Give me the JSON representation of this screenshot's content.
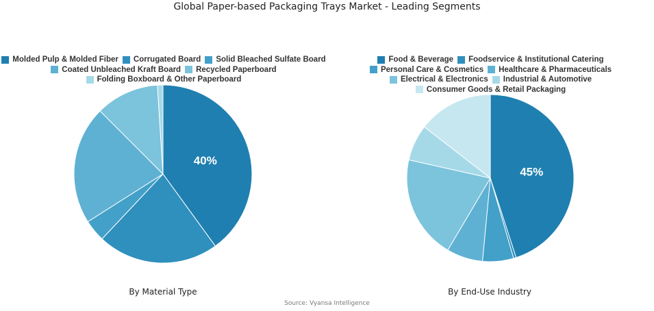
{
  "title": "Global Paper-based Packaging Trays Market - Leading Segments",
  "source": "Source: Vyansa Intelligence",
  "chart_data": [
    {
      "type": "pie",
      "subtitle": "By Material Type",
      "labels": [
        "Molded Pulp & Molded Fiber",
        "Corrugated Board",
        "Solid Bleached Sulfate Board",
        "Coated Unbleached Kraft Board",
        "Recycled Paperboard",
        "Folding Boxboard & Other Paperboard"
      ],
      "values": [
        40,
        22,
        4,
        21.5,
        11.5,
        1
      ],
      "colors": [
        "#1f7fb0",
        "#2f8fbd",
        "#43a0c8",
        "#5fb1d3",
        "#7cc3dc",
        "#a6d9e8"
      ],
      "data_labels": [
        "40%",
        "",
        "",
        "",
        "",
        ""
      ],
      "legend_position": "top"
    },
    {
      "type": "pie",
      "subtitle": "By End-Use Industry",
      "labels": [
        "Food & Beverage",
        "Foodservice & Institutional Catering",
        "Personal Care & Cosmetics",
        "Healthcare & Pharmaceuticals",
        "Electrical & Electronics",
        "Industrial & Automotive",
        "Consumer Goods & Retail Packaging"
      ],
      "values": [
        45,
        0.5,
        6,
        7,
        20,
        7,
        14.5
      ],
      "colors": [
        "#1f7fb0",
        "#2f8fbd",
        "#43a0c8",
        "#5fb1d3",
        "#7cc3dc",
        "#a6d9e8",
        "#c6e7f0"
      ],
      "data_labels": [
        "45%",
        "",
        "",
        "",
        "",
        "",
        ""
      ],
      "legend_position": "top"
    }
  ]
}
